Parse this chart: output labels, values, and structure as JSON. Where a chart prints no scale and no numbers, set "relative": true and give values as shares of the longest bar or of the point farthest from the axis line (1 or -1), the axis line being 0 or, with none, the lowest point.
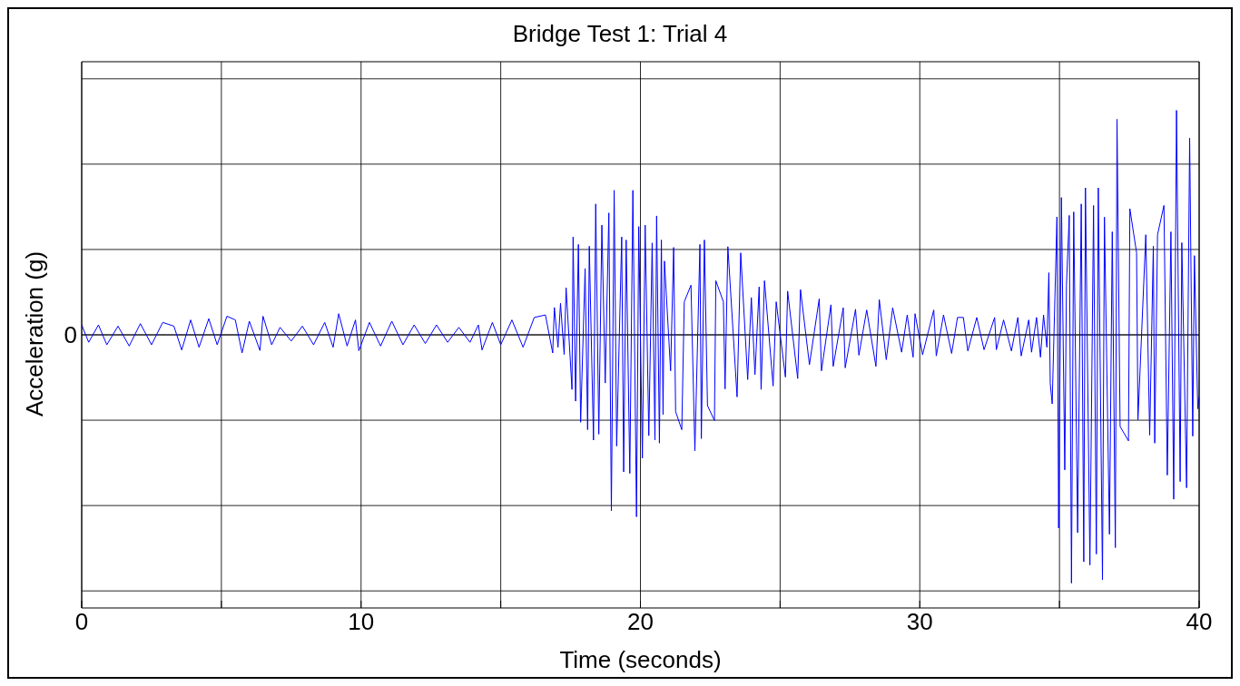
{
  "chart_data": {
    "type": "line",
    "title": "Bridge Test 1: Trial 4",
    "xlabel": "Time (seconds)",
    "ylabel": "Acceleration (g)",
    "relative": true,
    "grid": true,
    "marker": "none",
    "line_style": "solid",
    "xlim": [
      0,
      40
    ],
    "xticks": [
      0,
      {
        "value": 5,
        "label": null
      },
      10,
      {
        "value": 15,
        "label": null
      },
      20,
      {
        "value": 25,
        "label": null
      },
      30,
      {
        "value": 35,
        "label": null
      },
      40
    ],
    "ref_lines": [
      {
        "axis": "y",
        "value": 0,
        "label": "0"
      }
    ],
    "x": [
      0,
      0.25,
      0.6,
      0.9,
      1.3,
      1.7,
      2.1,
      2.5,
      2.9,
      3.3,
      3.58,
      3.9,
      4.2,
      4.55,
      4.85,
      5.2,
      5.5,
      5.74,
      6.0,
      6.38,
      6.49,
      6.8,
      7.1,
      7.5,
      7.9,
      8.3,
      8.7,
      9.0,
      9.2,
      9.5,
      9.8,
      9.92,
      10.3,
      10.7,
      11.1,
      11.5,
      11.9,
      12.3,
      12.7,
      13.1,
      13.5,
      13.9,
      14.2,
      14.33,
      14.7,
      15.0,
      15.4,
      15.8,
      16.2,
      16.6,
      16.86,
      16.92,
      17.05,
      17.14,
      17.27,
      17.34,
      17.55,
      17.59,
      17.68,
      17.78,
      17.86,
      18.02,
      18.11,
      18.17,
      18.32,
      18.4,
      18.51,
      18.62,
      18.74,
      18.87,
      18.96,
      19.06,
      19.15,
      19.33,
      19.4,
      19.49,
      19.62,
      19.73,
      19.86,
      19.94,
      20.07,
      20.17,
      20.3,
      20.42,
      20.52,
      20.58,
      20.68,
      20.75,
      20.81,
      20.86,
      21.08,
      21.19,
      21.26,
      21.48,
      21.57,
      21.81,
      21.95,
      22.13,
      22.18,
      22.29,
      22.4,
      22.65,
      22.7,
      22.97,
      23.03,
      23.13,
      23.46,
      23.59,
      23.84,
      23.97,
      24.1,
      24.25,
      24.32,
      24.44,
      24.75,
      24.86,
      25.19,
      25.27,
      25.63,
      25.73,
      26.05,
      26.4,
      26.48,
      26.82,
      26.9,
      27.26,
      27.33,
      27.7,
      27.82,
      28.1,
      28.43,
      28.55,
      28.8,
      29.03,
      29.35,
      29.55,
      29.76,
      29.83,
      30.1,
      30.5,
      30.59,
      30.85,
      31.14,
      31.35,
      31.56,
      31.72,
      32.04,
      32.3,
      32.68,
      32.74,
      33.0,
      33.28,
      33.51,
      33.63,
      33.9,
      34.0,
      34.18,
      34.32,
      34.43,
      34.55,
      34.62,
      34.67,
      34.74,
      34.91,
      34.97,
      35.07,
      35.19,
      35.25,
      35.35,
      35.43,
      35.51,
      35.65,
      35.78,
      35.87,
      35.93,
      36.09,
      36.22,
      36.32,
      36.39,
      36.54,
      36.61,
      36.79,
      36.89,
      37.0,
      37.06,
      37.17,
      37.47,
      37.52,
      37.76,
      37.81,
      38.09,
      38.23,
      38.36,
      38.41,
      38.51,
      38.74,
      38.86,
      38.99,
      39.09,
      39.19,
      39.32,
      39.38,
      39.55,
      39.66,
      39.77,
      39.83,
      39.95,
      40
    ],
    "series": [
      {
        "color": "#0000ff",
        "values": [
          0.04,
          -0.03,
          0.04,
          -0.04,
          0.035,
          -0.045,
          0.045,
          -0.04,
          0.05,
          0.035,
          -0.061,
          0.06,
          -0.05,
          0.065,
          -0.04,
          0.075,
          0.06,
          -0.073,
          0.055,
          -0.063,
          0.075,
          -0.04,
          0.03,
          -0.025,
          0.035,
          -0.04,
          0.05,
          -0.05,
          0.085,
          -0.045,
          0.06,
          -0.064,
          0.05,
          -0.045,
          0.055,
          -0.04,
          0.04,
          -0.035,
          0.04,
          -0.03,
          0.03,
          -0.03,
          0.04,
          -0.061,
          0.05,
          -0.04,
          0.06,
          -0.05,
          0.07,
          0.08,
          -0.073,
          0.11,
          -0.05,
          0.127,
          -0.079,
          0.19,
          -0.22,
          0.394,
          -0.267,
          0.364,
          -0.352,
          0.267,
          -0.382,
          0.357,
          -0.424,
          0.527,
          -0.4,
          0.442,
          -0.194,
          0.491,
          -0.709,
          0.582,
          -0.448,
          0.394,
          -0.552,
          0.382,
          -0.558,
          0.582,
          -0.733,
          0.436,
          -0.497,
          0.442,
          -0.406,
          0.37,
          -0.424,
          0.479,
          -0.436,
          0.382,
          -0.321,
          0.297,
          -0.145,
          0.352,
          -0.309,
          -0.382,
          0.133,
          0.2,
          -0.467,
          0.364,
          -0.418,
          0.382,
          -0.285,
          -0.345,
          0.218,
          0.133,
          -0.218,
          0.355,
          -0.25,
          0.33,
          -0.18,
          0.15,
          -0.16,
          0.193,
          -0.22,
          0.218,
          -0.206,
          0.133,
          -0.17,
          0.176,
          -0.176,
          0.182,
          -0.12,
          0.145,
          -0.145,
          0.121,
          -0.127,
          0.109,
          -0.133,
          0.103,
          -0.082,
          0.1,
          -0.127,
          0.142,
          -0.1,
          0.109,
          -0.07,
          0.08,
          -0.09,
          0.085,
          -0.08,
          0.1,
          -0.085,
          0.08,
          -0.075,
          0.07,
          0.07,
          -0.065,
          0.07,
          -0.06,
          0.07,
          -0.06,
          0.06,
          -0.065,
          0.07,
          -0.085,
          0.06,
          -0.07,
          0.07,
          -0.09,
          0.08,
          -0.05,
          0.25,
          -0.196,
          -0.278,
          0.475,
          -0.778,
          0.553,
          -0.544,
          0.2,
          0.481,
          -1.0,
          0.495,
          -0.797,
          0.527,
          -0.914,
          0.592,
          -0.927,
          0.521,
          -0.883,
          0.592,
          -0.986,
          0.474,
          -0.803,
          0.415,
          -0.857,
          0.868,
          -0.369,
          -0.427,
          0.508,
          0.331,
          -0.342,
          0.403,
          -0.404,
          0.358,
          -0.436,
          0.403,
          0.521,
          -0.565,
          0.415,
          -0.662,
          0.904,
          -0.591,
          0.371,
          -0.616,
          0.792,
          -0.408,
          0.319,
          -0.298,
          -0.25
        ]
      }
    ]
  }
}
